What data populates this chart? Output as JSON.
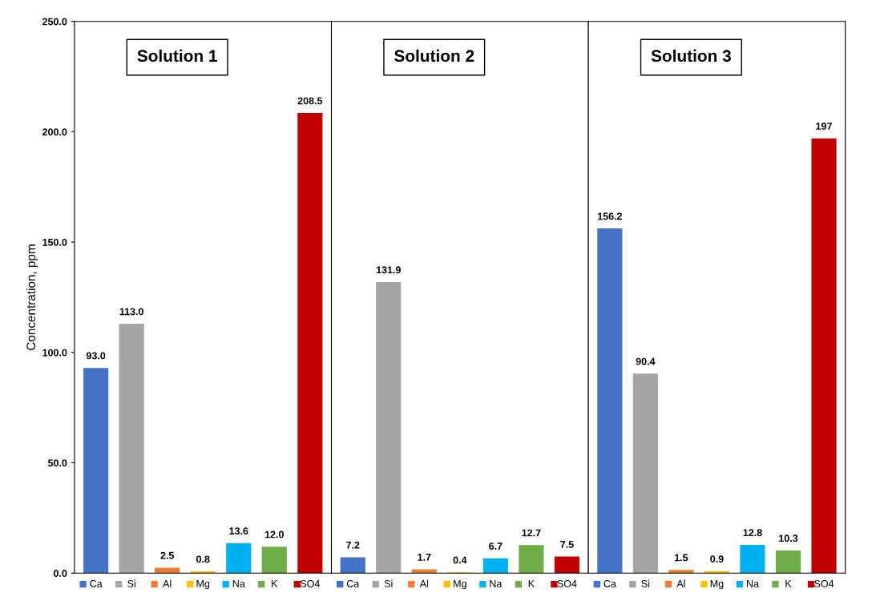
{
  "chart_data": [
    {
      "type": "bar",
      "title": "Solution 1",
      "ylabel": "Concentration, ppm",
      "categories": [
        "Ca",
        "Si",
        "Al",
        "Mg",
        "Na",
        "K",
        "SO4"
      ],
      "values": [
        93.0,
        113.0,
        2.5,
        0.8,
        13.6,
        12.0,
        208.5
      ],
      "value_labels": [
        "93.0",
        "113.0",
        "2.5",
        "0.8",
        "13.6",
        "12.0",
        "208.5"
      ],
      "colors": [
        "#4472c4",
        "#a5a5a5",
        "#ed7d31",
        "#ffc000",
        "#00b0f0",
        "#70ad47",
        "#c00000"
      ],
      "ylim": [
        0,
        250
      ],
      "yticks": [
        {
          "value": 0,
          "label": "0.0"
        },
        {
          "value": 50,
          "label": "50.0"
        },
        {
          "value": 100,
          "label": "100.0"
        },
        {
          "value": 150,
          "label": "150.0"
        },
        {
          "value": 200,
          "label": "200.0"
        },
        {
          "value": 250,
          "label": "250.0"
        }
      ],
      "grid": false
    },
    {
      "type": "bar",
      "title": "Solution 2",
      "categories": [
        "Ca",
        "Si",
        "Al",
        "Mg",
        "Na",
        "K",
        "SO4"
      ],
      "values": [
        7.2,
        131.9,
        1.7,
        0.4,
        6.7,
        12.7,
        7.5
      ],
      "value_labels": [
        "7.2",
        "131.9",
        "1.7",
        "0.4",
        "6.7",
        "12.7",
        "7.5"
      ],
      "colors": [
        "#4472c4",
        "#a5a5a5",
        "#ed7d31",
        "#ffc000",
        "#00b0f0",
        "#70ad47",
        "#c00000"
      ],
      "ylim": [
        0,
        250
      ],
      "tick_labels": "x",
      "grid": false
    },
    {
      "type": "bar",
      "title": "Solution 3",
      "categories": [
        "Ca",
        "Si",
        "Al",
        "Mg",
        "Na",
        "K",
        "SO4"
      ],
      "values": [
        156.2,
        90.4,
        1.5,
        0.9,
        12.8,
        10.3,
        197
      ],
      "value_labels": [
        "156.2",
        "90.4",
        "1.5",
        "0.9",
        "12.8",
        "10.3",
        "197"
      ],
      "colors": [
        "#4472c4",
        "#a5a5a5",
        "#ed7d31",
        "#ffc000",
        "#00b0f0",
        "#70ad47",
        "#c00000"
      ],
      "ylim": [
        0,
        250
      ],
      "tick_labels": "x",
      "grid": false
    }
  ]
}
